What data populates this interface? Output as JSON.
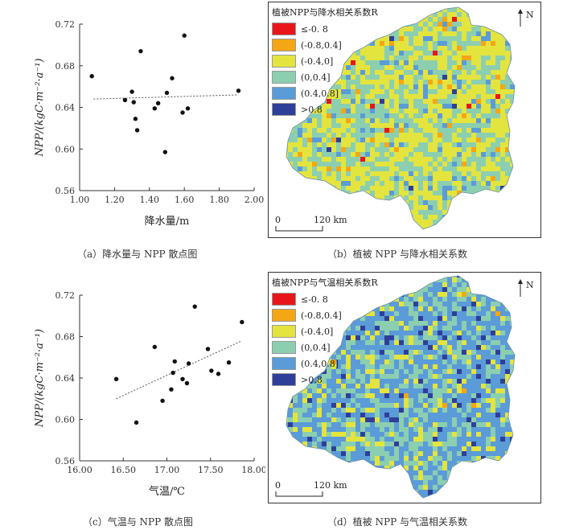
{
  "chart_data": [
    {
      "type": "scatter",
      "panel": "a",
      "xlabel": "降水量/m",
      "ylabel": "NPP/(kgC·m⁻²·a⁻¹)",
      "xlim": [
        1.0,
        2.0
      ],
      "ylim": [
        0.56,
        0.72
      ],
      "xticks": [
        "1.00",
        "1.20",
        "1.40",
        "1.60",
        "1.80",
        "2.00"
      ],
      "yticks": [
        "0.56",
        "0.60",
        "0.64",
        "0.68",
        "0.72"
      ],
      "x": [
        1.07,
        1.26,
        1.3,
        1.31,
        1.32,
        1.33,
        1.35,
        1.43,
        1.45,
        1.49,
        1.5,
        1.53,
        1.59,
        1.6,
        1.62,
        1.91
      ],
      "y": [
        0.67,
        0.647,
        0.655,
        0.645,
        0.629,
        0.618,
        0.694,
        0.639,
        0.644,
        0.597,
        0.654,
        0.668,
        0.635,
        0.709,
        0.639,
        0.656
      ],
      "trendline": {
        "x": [
          1.08,
          1.91
        ],
        "y": [
          0.648,
          0.652
        ]
      },
      "caption": "（a）降水量与 NPP 散点图"
    },
    {
      "type": "scatter",
      "panel": "c",
      "xlabel": "气温/℃",
      "ylabel": "NPP/(kgC·m⁻²·a⁻¹)",
      "xlim": [
        16.0,
        18.0
      ],
      "ylim": [
        0.56,
        0.72
      ],
      "xticks": [
        "16.00",
        "16.50",
        "17.00",
        "17.50",
        "18.00"
      ],
      "yticks": [
        "0.56",
        "0.60",
        "0.64",
        "0.68",
        "0.72"
      ],
      "x": [
        16.42,
        16.65,
        16.86,
        16.95,
        17.05,
        17.07,
        17.09,
        17.18,
        17.23,
        17.25,
        17.32,
        17.47,
        17.51,
        17.59,
        17.71,
        17.86
      ],
      "y": [
        0.639,
        0.597,
        0.67,
        0.618,
        0.629,
        0.645,
        0.656,
        0.639,
        0.635,
        0.654,
        0.709,
        0.668,
        0.647,
        0.644,
        0.655,
        0.694
      ],
      "trendline": {
        "x": [
          16.42,
          17.86
        ],
        "y": [
          0.62,
          0.676
        ]
      },
      "caption": "（c）气温与 NPP 散点图"
    }
  ],
  "maps": [
    {
      "panel": "b",
      "legend_title": "植被NPP与降水相关系数R",
      "caption": "（b）植被 NPP 与降水相关系数",
      "north_label": "N",
      "scale_start": "0",
      "scale_end": "120 km",
      "dominant": "yellow-green"
    },
    {
      "panel": "d",
      "legend_title": "植被NPP与气温相关系数R",
      "caption": "（d）植被 NPP 与气温相关系数",
      "north_label": "N",
      "scale_start": "0",
      "scale_end": "120 km",
      "dominant": "blue"
    }
  ],
  "legend": [
    {
      "label": "≤-0. 8",
      "color": "#e8161b"
    },
    {
      "label": "(-0.8,0.4]",
      "color": "#f5a614"
    },
    {
      "label": "(-0.4,0]",
      "color": "#e4e43f"
    },
    {
      "label": "(0,0.4]",
      "color": "#8ccfb0"
    },
    {
      "label": "(0.4,0.8]",
      "color": "#5a9bd8"
    },
    {
      "label": ">0.8",
      "color": "#2e3f9a"
    }
  ]
}
